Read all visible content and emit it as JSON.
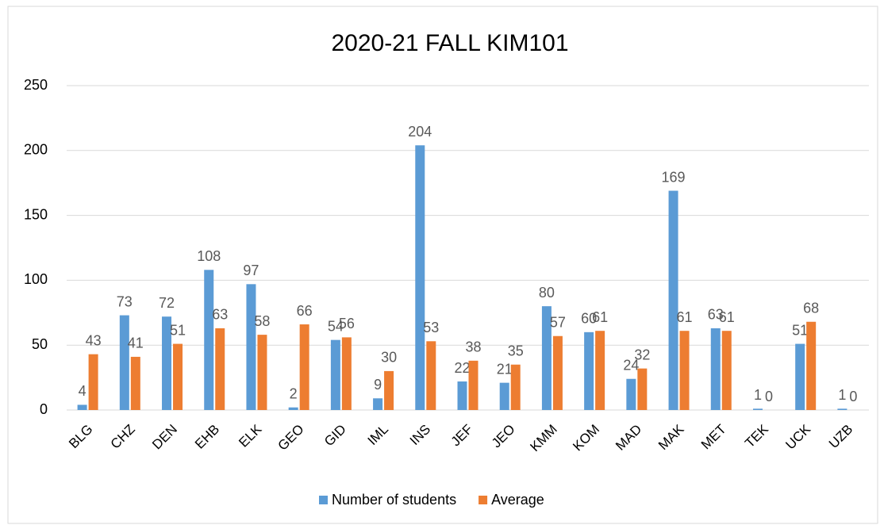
{
  "chart_data": {
    "type": "bar",
    "title": "2020-21 FALL KIM101",
    "categories": [
      "BLG",
      "CHZ",
      "DEN",
      "EHB",
      "ELK",
      "GEO",
      "GID",
      "IML",
      "INS",
      "JEF",
      "JEO",
      "KMM",
      "KOM",
      "MAD",
      "MAK",
      "MET",
      "TEK",
      "UCK",
      "UZB"
    ],
    "series": [
      {
        "name": "Number of students",
        "color": "#5b9bd5",
        "values": [
          4,
          73,
          72,
          108,
          97,
          2,
          54,
          9,
          204,
          22,
          21,
          80,
          60,
          24,
          169,
          63,
          1,
          51,
          1
        ]
      },
      {
        "name": "Average",
        "color": "#ed7d31",
        "values": [
          43,
          41,
          51,
          63,
          58,
          66,
          56,
          30,
          53,
          38,
          35,
          57,
          61,
          32,
          61,
          61,
          0,
          68,
          0
        ]
      }
    ],
    "ylim": [
      0,
      250
    ],
    "yticks": [
      0,
      50,
      100,
      150,
      200,
      250
    ],
    "grid": true,
    "legend": "bottom"
  }
}
